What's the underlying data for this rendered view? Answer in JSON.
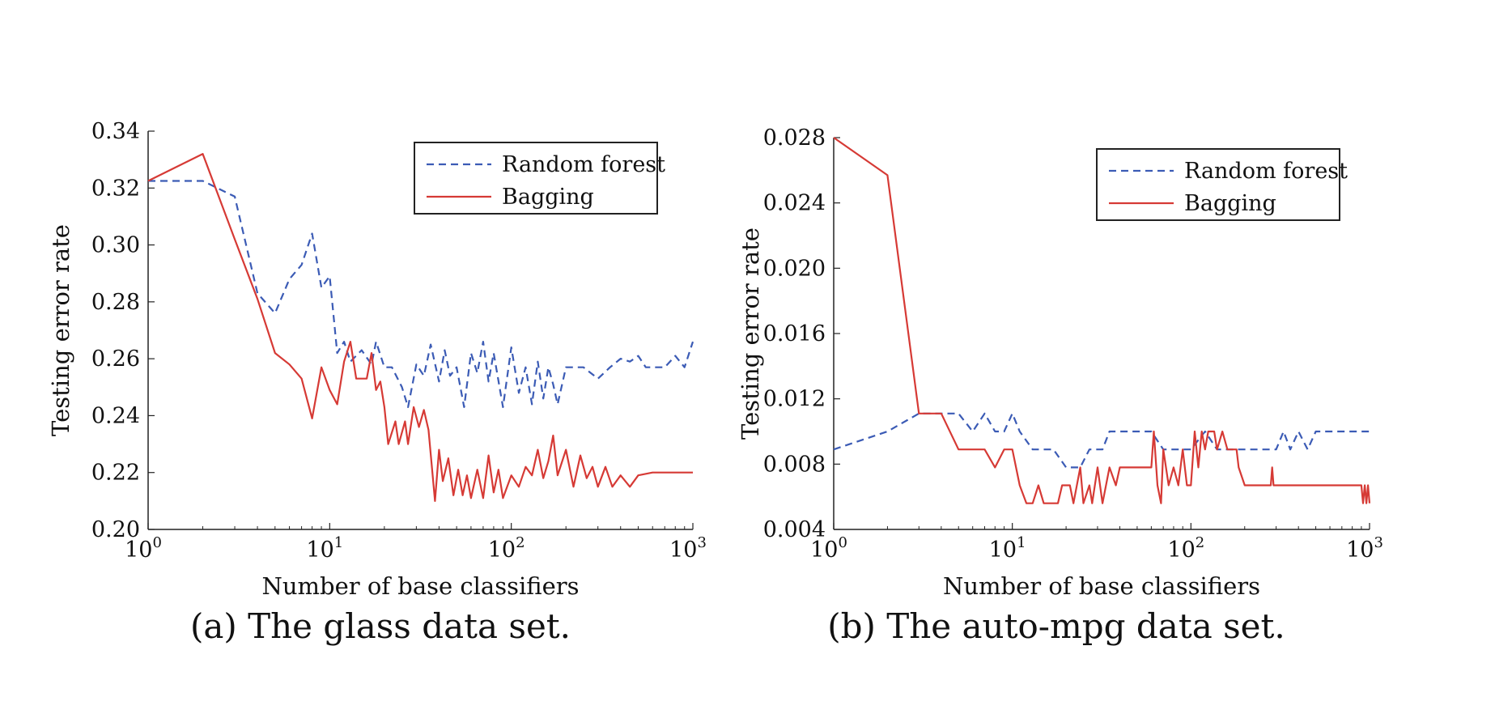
{
  "chart_data": [
    {
      "type": "line",
      "caption": "(a) The glass data set.",
      "xlabel": "Number of base classifiers",
      "ylabel": "Testing error rate",
      "x_scale": "log",
      "xlim": [
        1,
        1000
      ],
      "ylim": [
        0.2,
        0.34
      ],
      "x_ticks": [
        {
          "base": "10",
          "exp": "0"
        },
        {
          "base": "10",
          "exp": "1"
        },
        {
          "base": "10",
          "exp": "2"
        },
        {
          "base": "10",
          "exp": "3"
        }
      ],
      "y_ticks": [
        "0.20",
        "0.22",
        "0.24",
        "0.26",
        "0.28",
        "0.30",
        "0.32",
        "0.34"
      ],
      "grid": false,
      "legend_position": "top-right",
      "series": [
        {
          "name": "Random forest",
          "color": "#3b5bb5",
          "style": "dashed",
          "points": [
            [
              1,
              0.3225
            ],
            [
              2,
              0.3225
            ],
            [
              3,
              0.317
            ],
            [
              4,
              0.283
            ],
            [
              5,
              0.276
            ],
            [
              6,
              0.288
            ],
            [
              7,
              0.293
            ],
            [
              8,
              0.304
            ],
            [
              9,
              0.285
            ],
            [
              10,
              0.289
            ],
            [
              11,
              0.262
            ],
            [
              12,
              0.266
            ],
            [
              13,
              0.259
            ],
            [
              15,
              0.263
            ],
            [
              17,
              0.258
            ],
            [
              18,
              0.266
            ],
            [
              20,
              0.257
            ],
            [
              22,
              0.257
            ],
            [
              25,
              0.25
            ],
            [
              27,
              0.243
            ],
            [
              30,
              0.258
            ],
            [
              33,
              0.254
            ],
            [
              36,
              0.265
            ],
            [
              40,
              0.252
            ],
            [
              43,
              0.263
            ],
            [
              46,
              0.254
            ],
            [
              50,
              0.257
            ],
            [
              55,
              0.243
            ],
            [
              60,
              0.262
            ],
            [
              65,
              0.255
            ],
            [
              70,
              0.266
            ],
            [
              75,
              0.252
            ],
            [
              80,
              0.262
            ],
            [
              90,
              0.243
            ],
            [
              100,
              0.264
            ],
            [
              110,
              0.248
            ],
            [
              120,
              0.257
            ],
            [
              130,
              0.244
            ],
            [
              140,
              0.259
            ],
            [
              150,
              0.246
            ],
            [
              160,
              0.257
            ],
            [
              170,
              0.251
            ],
            [
              180,
              0.244
            ],
            [
              200,
              0.257
            ],
            [
              250,
              0.257
            ],
            [
              300,
              0.253
            ],
            [
              350,
              0.257
            ],
            [
              400,
              0.26
            ],
            [
              450,
              0.259
            ],
            [
              500,
              0.261
            ],
            [
              550,
              0.257
            ],
            [
              700,
              0.257
            ],
            [
              800,
              0.261
            ],
            [
              900,
              0.257
            ],
            [
              1000,
              0.266
            ]
          ]
        },
        {
          "name": "Bagging",
          "color": "#d63a35",
          "style": "solid",
          "points": [
            [
              1,
              0.3225
            ],
            [
              2,
              0.332
            ],
            [
              3,
              0.302
            ],
            [
              4,
              0.281
            ],
            [
              5,
              0.262
            ],
            [
              6,
              0.258
            ],
            [
              7,
              0.253
            ],
            [
              8,
              0.239
            ],
            [
              9,
              0.257
            ],
            [
              10,
              0.249
            ],
            [
              11,
              0.244
            ],
            [
              12,
              0.259
            ],
            [
              13,
              0.266
            ],
            [
              14,
              0.253
            ],
            [
              16,
              0.253
            ],
            [
              17,
              0.262
            ],
            [
              18,
              0.249
            ],
            [
              19,
              0.252
            ],
            [
              20,
              0.243
            ],
            [
              21,
              0.23
            ],
            [
              23,
              0.238
            ],
            [
              24,
              0.23
            ],
            [
              26,
              0.238
            ],
            [
              27,
              0.23
            ],
            [
              29,
              0.243
            ],
            [
              31,
              0.236
            ],
            [
              33,
              0.242
            ],
            [
              35,
              0.235
            ],
            [
              38,
              0.21
            ],
            [
              40,
              0.228
            ],
            [
              42,
              0.217
            ],
            [
              45,
              0.225
            ],
            [
              48,
              0.212
            ],
            [
              51,
              0.221
            ],
            [
              54,
              0.212
            ],
            [
              57,
              0.219
            ],
            [
              60,
              0.211
            ],
            [
              65,
              0.221
            ],
            [
              70,
              0.211
            ],
            [
              75,
              0.226
            ],
            [
              80,
              0.213
            ],
            [
              85,
              0.221
            ],
            [
              90,
              0.211
            ],
            [
              100,
              0.219
            ],
            [
              110,
              0.215
            ],
            [
              120,
              0.222
            ],
            [
              130,
              0.219
            ],
            [
              140,
              0.228
            ],
            [
              150,
              0.218
            ],
            [
              160,
              0.224
            ],
            [
              170,
              0.233
            ],
            [
              180,
              0.219
            ],
            [
              200,
              0.228
            ],
            [
              220,
              0.215
            ],
            [
              240,
              0.226
            ],
            [
              260,
              0.218
            ],
            [
              280,
              0.222
            ],
            [
              300,
              0.215
            ],
            [
              330,
              0.222
            ],
            [
              360,
              0.215
            ],
            [
              400,
              0.219
            ],
            [
              450,
              0.215
            ],
            [
              500,
              0.219
            ],
            [
              600,
              0.22
            ],
            [
              1000,
              0.22
            ]
          ]
        }
      ]
    },
    {
      "type": "line",
      "caption": "(b) The auto-mpg data set.",
      "xlabel": "Number of base classifiers",
      "ylabel": "Testing error rate",
      "x_scale": "log",
      "xlim": [
        1,
        1000
      ],
      "ylim": [
        0.004,
        0.028
      ],
      "x_ticks": [
        {
          "base": "10",
          "exp": "0"
        },
        {
          "base": "10",
          "exp": "1"
        },
        {
          "base": "10",
          "exp": "2"
        },
        {
          "base": "10",
          "exp": "3"
        }
      ],
      "y_ticks": [
        "0.004",
        "0.008",
        "0.012",
        "0.016",
        "0.020",
        "0.024",
        "0.028"
      ],
      "grid": false,
      "legend_position": "top-right",
      "series": [
        {
          "name": "Random forest",
          "color": "#3b5bb5",
          "style": "dashed",
          "points": [
            [
              1,
              0.0089
            ],
            [
              2,
              0.01
            ],
            [
              3,
              0.0111
            ],
            [
              4,
              0.0111
            ],
            [
              5,
              0.0111
            ],
            [
              6,
              0.01
            ],
            [
              7,
              0.0111
            ],
            [
              8,
              0.01
            ],
            [
              9,
              0.01
            ],
            [
              10,
              0.0111
            ],
            [
              11,
              0.01
            ],
            [
              13,
              0.0089
            ],
            [
              17,
              0.0089
            ],
            [
              20,
              0.0078
            ],
            [
              24,
              0.0078
            ],
            [
              27,
              0.0089
            ],
            [
              32,
              0.0089
            ],
            [
              35,
              0.01
            ],
            [
              60,
              0.01
            ],
            [
              70,
              0.0089
            ],
            [
              80,
              0.0089
            ],
            [
              100,
              0.0089
            ],
            [
              120,
              0.01
            ],
            [
              140,
              0.0089
            ],
            [
              200,
              0.0089
            ],
            [
              300,
              0.0089
            ],
            [
              330,
              0.01
            ],
            [
              360,
              0.0089
            ],
            [
              400,
              0.01
            ],
            [
              450,
              0.0089
            ],
            [
              500,
              0.01
            ],
            [
              1000,
              0.01
            ]
          ]
        },
        {
          "name": "Bagging",
          "color": "#d63a35",
          "style": "solid",
          "points": [
            [
              1,
              0.028
            ],
            [
              2,
              0.0257
            ],
            [
              3,
              0.0111
            ],
            [
              4,
              0.0111
            ],
            [
              5,
              0.0089
            ],
            [
              7,
              0.0089
            ],
            [
              8,
              0.0078
            ],
            [
              9,
              0.0089
            ],
            [
              10,
              0.0089
            ],
            [
              11,
              0.0067
            ],
            [
              12,
              0.0056
            ],
            [
              13,
              0.0056
            ],
            [
              14,
              0.0067
            ],
            [
              15,
              0.0056
            ],
            [
              18,
              0.0056
            ],
            [
              19,
              0.0067
            ],
            [
              21,
              0.0067
            ],
            [
              22,
              0.0056
            ],
            [
              24,
              0.0078
            ],
            [
              25,
              0.0056
            ],
            [
              27,
              0.0067
            ],
            [
              28,
              0.0056
            ],
            [
              30,
              0.0078
            ],
            [
              32,
              0.0056
            ],
            [
              35,
              0.0078
            ],
            [
              38,
              0.0067
            ],
            [
              40,
              0.0078
            ],
            [
              60,
              0.0078
            ],
            [
              62,
              0.01
            ],
            [
              65,
              0.0067
            ],
            [
              68,
              0.0056
            ],
            [
              70,
              0.0089
            ],
            [
              75,
              0.0067
            ],
            [
              80,
              0.0078
            ],
            [
              85,
              0.0067
            ],
            [
              90,
              0.0089
            ],
            [
              95,
              0.0067
            ],
            [
              100,
              0.0067
            ],
            [
              105,
              0.01
            ],
            [
              110,
              0.0078
            ],
            [
              115,
              0.01
            ],
            [
              120,
              0.0089
            ],
            [
              125,
              0.01
            ],
            [
              135,
              0.01
            ],
            [
              140,
              0.0089
            ],
            [
              150,
              0.01
            ],
            [
              160,
              0.0089
            ],
            [
              180,
              0.0089
            ],
            [
              185,
              0.0078
            ],
            [
              200,
              0.0067
            ],
            [
              280,
              0.0067
            ],
            [
              285,
              0.0078
            ],
            [
              290,
              0.0067
            ],
            [
              900,
              0.0067
            ],
            [
              920,
              0.0056
            ],
            [
              940,
              0.0067
            ],
            [
              960,
              0.0056
            ],
            [
              980,
              0.0067
            ],
            [
              1000,
              0.0056
            ]
          ]
        }
      ]
    }
  ]
}
